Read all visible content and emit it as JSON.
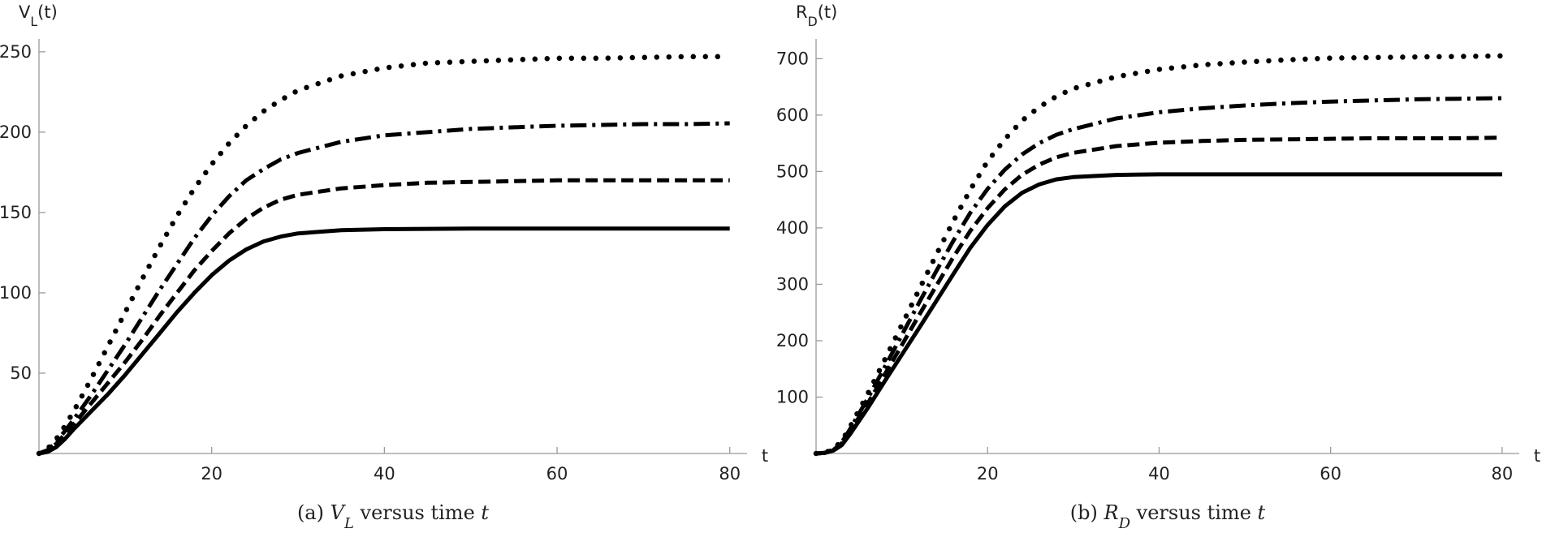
{
  "chart_data": [
    {
      "type": "line",
      "ylabel": [
        {
          "text": "V"
        },
        {
          "text": "L",
          "style": "sub"
        },
        {
          "text": "(t)"
        }
      ],
      "xlabel": "t",
      "caption": [
        {
          "text": "(a) "
        },
        {
          "text": "V",
          "style": "italic"
        },
        {
          "text": "L",
          "style": "sub-italic"
        },
        {
          "text": " versus time "
        },
        {
          "text": "t",
          "style": "italic"
        }
      ],
      "xlim": [
        0,
        82
      ],
      "ylim": [
        0,
        258
      ],
      "xticks": [
        20,
        40,
        60,
        80
      ],
      "yticks": [
        50,
        100,
        150,
        200,
        250
      ],
      "x": [
        0,
        1,
        2,
        3,
        4,
        6,
        8,
        10,
        12,
        14,
        16,
        18,
        20,
        22,
        24,
        26,
        28,
        30,
        35,
        40,
        45,
        50,
        55,
        60,
        65,
        70,
        75,
        80
      ],
      "series": [
        {
          "color": "#000000",
          "style": "solid",
          "values": [
            0,
            1,
            4,
            9,
            15,
            26,
            37,
            49,
            62,
            75,
            88,
            100,
            111,
            120,
            127,
            132,
            135,
            137,
            139,
            139.6,
            139.8,
            140,
            140,
            140,
            140,
            140,
            140,
            140
          ]
        },
        {
          "color": "#000000",
          "style": "dashed",
          "values": [
            0,
            2,
            6,
            12,
            18,
            31,
            44,
            57,
            71,
            86,
            100,
            114,
            126,
            137,
            146,
            153,
            158,
            161,
            165,
            167,
            168.5,
            169,
            169.5,
            170,
            170,
            170,
            170,
            170
          ]
        },
        {
          "color": "#000000",
          "style": "dashdot",
          "values": [
            0,
            2,
            7,
            14,
            21,
            36,
            52,
            68,
            85,
            102,
            118,
            134,
            148,
            160,
            170,
            177,
            183,
            187,
            194,
            198,
            200,
            202,
            203,
            204,
            204.5,
            205,
            205,
            205.5
          ]
        },
        {
          "color": "#000000",
          "style": "dotted",
          "values": [
            0,
            3,
            9,
            17,
            26,
            46,
            67,
            88,
            109,
            129,
            148,
            165,
            180,
            193,
            204,
            213,
            220,
            226,
            235,
            240,
            243,
            244,
            245,
            246,
            246,
            246.5,
            247,
            247
          ]
        }
      ]
    },
    {
      "type": "line",
      "ylabel": [
        {
          "text": "R"
        },
        {
          "text": "D",
          "style": "sub"
        },
        {
          "text": "(t)"
        }
      ],
      "xlabel": "t",
      "caption": [
        {
          "text": "(b) "
        },
        {
          "text": "R",
          "style": "italic"
        },
        {
          "text": "D",
          "style": "sub-italic"
        },
        {
          "text": " versus time "
        },
        {
          "text": "t",
          "style": "italic"
        }
      ],
      "xlim": [
        0,
        82
      ],
      "ylim": [
        0,
        735
      ],
      "xticks": [
        20,
        40,
        60,
        80
      ],
      "yticks": [
        100,
        200,
        300,
        400,
        500,
        600,
        700
      ],
      "x": [
        0,
        1,
        2,
        3,
        4,
        6,
        8,
        10,
        12,
        14,
        16,
        18,
        20,
        22,
        24,
        26,
        28,
        30,
        35,
        40,
        45,
        50,
        55,
        60,
        65,
        70,
        75,
        80
      ],
      "series": [
        {
          "color": "#000000",
          "style": "solid",
          "values": [
            0,
            1,
            5,
            15,
            35,
            80,
            128,
            175,
            222,
            270,
            318,
            365,
            405,
            438,
            462,
            477,
            486,
            490,
            494,
            495,
            495,
            495,
            495,
            495,
            495,
            495,
            495,
            495
          ]
        },
        {
          "color": "#000000",
          "style": "dashed",
          "values": [
            0,
            1,
            6,
            18,
            40,
            88,
            140,
            192,
            245,
            297,
            348,
            395,
            435,
            468,
            494,
            512,
            525,
            533,
            545,
            551,
            554,
            556,
            557,
            558,
            559,
            559,
            559,
            560
          ]
        },
        {
          "color": "#000000",
          "style": "dashdot",
          "values": [
            0,
            1,
            7,
            20,
            44,
            97,
            153,
            210,
            267,
            323,
            377,
            427,
            469,
            503,
            530,
            550,
            565,
            575,
            594,
            605,
            612,
            617,
            621,
            624,
            626,
            628,
            629,
            630
          ]
        },
        {
          "color": "#000000",
          "style": "dotted",
          "values": [
            0,
            1,
            8,
            22,
            48,
            105,
            166,
            228,
            290,
            352,
            412,
            468,
            518,
            557,
            590,
            614,
            633,
            647,
            668,
            681,
            689,
            694,
            698,
            701,
            702,
            703,
            704,
            705
          ]
        }
      ]
    }
  ]
}
